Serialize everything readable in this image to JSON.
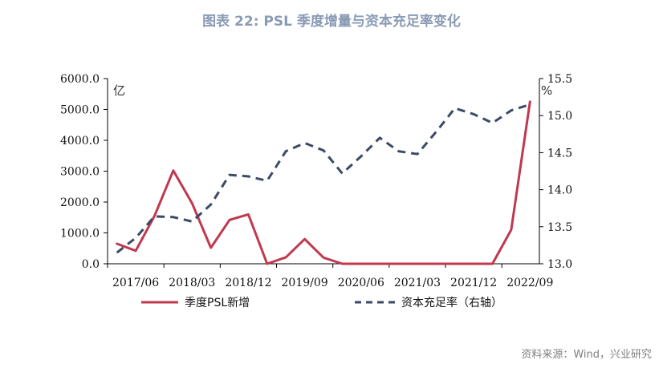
{
  "chart_data": {
    "type": "line",
    "title": "图表 22: PSL 季度增量与资本充足率变化",
    "y_left_unit": "亿",
    "y_right_unit": "%",
    "ylim_left": [
      0,
      6000
    ],
    "ylim_right": [
      13.0,
      15.5
    ],
    "left_ticks": [
      "0.0",
      "1000.0",
      "2000.0",
      "3000.0",
      "4000.0",
      "5000.0",
      "6000.0"
    ],
    "right_ticks": [
      "13.0",
      "13.5",
      "14.0",
      "14.5",
      "15.0",
      "15.5"
    ],
    "x_tick_labels": [
      "2017/06",
      "2018/03",
      "2018/12",
      "2019/09",
      "2020/06",
      "2021/03",
      "2021/12",
      "2022/09"
    ],
    "categories": [
      "2017/03",
      "2017/06",
      "2017/09",
      "2017/12",
      "2018/03",
      "2018/06",
      "2018/09",
      "2018/12",
      "2019/03",
      "2019/06",
      "2019/09",
      "2019/12",
      "2020/03",
      "2020/06",
      "2020/09",
      "2020/12",
      "2021/03",
      "2021/06",
      "2021/09",
      "2021/12",
      "2022/03",
      "2022/06",
      "2022/09"
    ],
    "series": [
      {
        "name": "季度PSL新增",
        "axis": "left",
        "color": "#c0394f",
        "style": "solid",
        "values": [
          650,
          420,
          1550,
          3020,
          1960,
          520,
          1420,
          1600,
          0,
          210,
          800,
          200,
          0,
          0,
          0,
          0,
          0,
          0,
          0,
          0,
          0,
          1100,
          5250
        ]
      },
      {
        "name": "资本充足率（右轴）",
        "axis": "right",
        "color": "#3b4a66",
        "style": "dashed",
        "values": [
          13.15,
          13.35,
          13.64,
          13.63,
          13.57,
          13.8,
          14.2,
          14.18,
          14.12,
          14.52,
          14.63,
          14.53,
          14.22,
          14.45,
          14.7,
          14.52,
          14.48,
          14.78,
          15.1,
          15.02,
          14.9,
          15.07,
          15.15
        ]
      }
    ]
  },
  "source": "资料来源：Wind，兴业研究"
}
